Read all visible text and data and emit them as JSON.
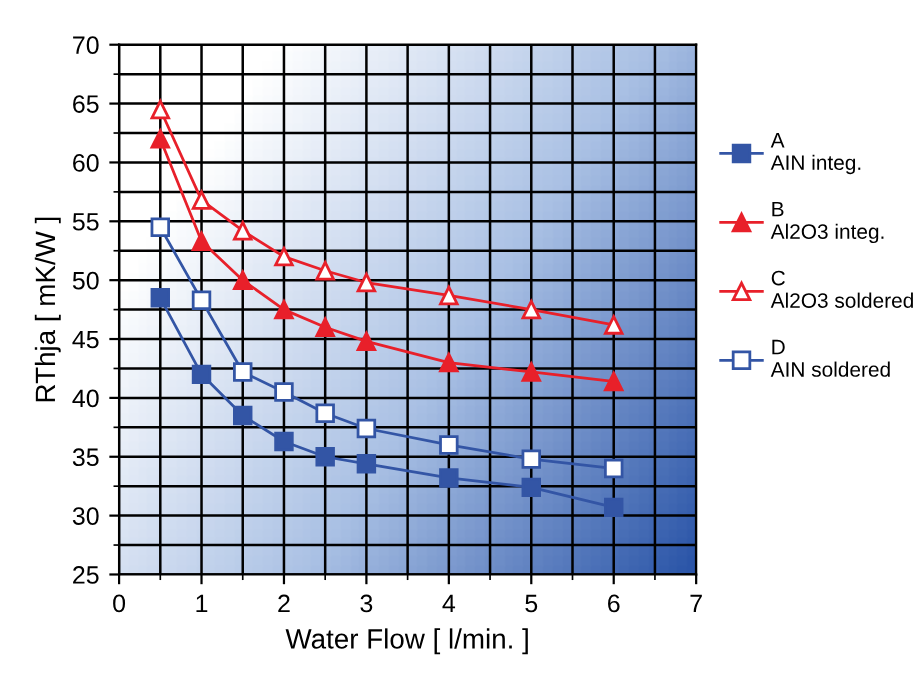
{
  "chart_data": {
    "type": "line",
    "xlabel": "Water Flow [ l/min. ]",
    "ylabel": "RThja [ mK/W ]",
    "x": [
      0.5,
      1,
      1.5,
      2,
      2.5,
      3,
      4,
      5,
      6
    ],
    "series": [
      {
        "name": "A\nAIN integ.",
        "color": "#3355a5",
        "marker": "square",
        "values": [
          48.5,
          42,
          38.5,
          36.3,
          35,
          34.4,
          33.2,
          32.4,
          30.7
        ]
      },
      {
        "name": "B\nAl2O3 integ.",
        "color": "#e8202a",
        "marker": "triangle",
        "values": [
          62,
          53.3,
          50,
          47.5,
          46,
          44.8,
          43,
          42.2,
          41.4
        ]
      },
      {
        "name": "C\nAl2O3 soldered",
        "color": "#e8202a",
        "marker": "triangle",
        "values": [
          64.5,
          56.8,
          54.2,
          52,
          50.8,
          49.8,
          48.7,
          47.5,
          46.2
        ]
      },
      {
        "name": "D\nAIN soldered",
        "color": "#3355a5",
        "marker": "square",
        "values": [
          54.5,
          48.3,
          42.2,
          40.5,
          38.7,
          37.4,
          36,
          34.8,
          34
        ]
      }
    ],
    "xlim": [
      0,
      7
    ],
    "xticks": [
      0,
      1,
      2,
      3,
      4,
      5,
      6,
      7
    ],
    "ylim": [
      25,
      70
    ],
    "yticks": [
      25,
      30,
      35,
      40,
      45,
      50,
      55,
      60,
      65,
      70
    ],
    "grid": true,
    "legend": "right",
    "line_style": "solid"
  }
}
